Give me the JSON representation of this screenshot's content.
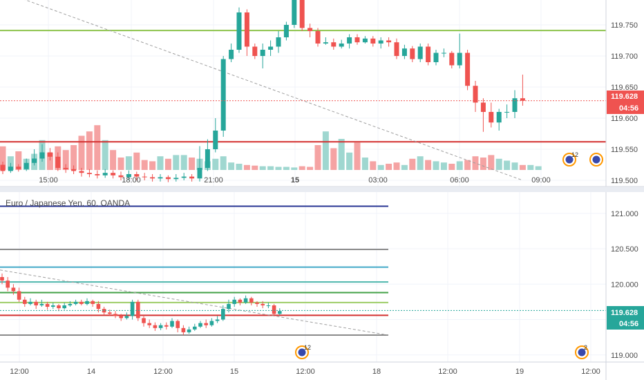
{
  "colors": {
    "up": "#26a69a",
    "down": "#ef5350",
    "vol_up": "#9fd7d0",
    "vol_down": "#f5a3a3",
    "grid": "#f0f3fa",
    "axis": "#4a4a4a",
    "support_green": "#8bc34a",
    "support_red": "#d32f2f",
    "price_line": "#ef5350",
    "trend_dash": "#9e9e9e"
  },
  "chart_data": [
    {
      "type": "candlestick",
      "x_tick_labels": [
        "15:00",
        "18:00",
        "21:00",
        "15",
        "03:00",
        "06:00",
        "09:00"
      ],
      "y_tick_labels": [
        "119.750",
        "119.700",
        "119.650",
        "119.600",
        "119.550",
        "119.500"
      ],
      "ylim": [
        119.49,
        119.79
      ],
      "current_price": "119.628",
      "countdown": "04:56",
      "horizontal_levels": [
        {
          "value": 119.741,
          "color": "#8bc34a"
        },
        {
          "value": 119.562,
          "color": "#d32f2f"
        }
      ],
      "trendline": {
        "from": [
          0,
          119.805
        ],
        "to": [
          66,
          119.5
        ]
      },
      "badges": [
        {
          "label": "12"
        },
        {
          "label": ""
        }
      ],
      "candles": [
        [
          119.525,
          119.515,
          119.53,
          119.51
        ],
        [
          119.515,
          119.522,
          119.528,
          119.512
        ],
        [
          119.522,
          119.518,
          119.526,
          119.514
        ],
        [
          119.518,
          119.528,
          119.535,
          119.515
        ],
        [
          119.528,
          119.535,
          119.55,
          119.524
        ],
        [
          119.535,
          119.545,
          119.558,
          119.53
        ],
        [
          119.545,
          119.538,
          119.552,
          119.532
        ],
        [
          119.538,
          119.52,
          119.545,
          119.515
        ],
        [
          119.52,
          119.518,
          119.526,
          119.512
        ],
        [
          119.518,
          119.515,
          119.524,
          119.51
        ],
        [
          119.515,
          119.512,
          119.52,
          119.506
        ],
        [
          119.512,
          119.51,
          119.518,
          119.505
        ],
        [
          119.51,
          119.508,
          119.516,
          119.503
        ],
        [
          119.508,
          119.512,
          119.518,
          119.504
        ],
        [
          119.512,
          119.508,
          119.516,
          119.503
        ],
        [
          119.508,
          119.505,
          119.514,
          119.5
        ],
        [
          119.505,
          119.51,
          119.516,
          119.5
        ],
        [
          119.51,
          119.506,
          119.514,
          119.5
        ],
        [
          119.506,
          119.505,
          119.512,
          119.5
        ],
        [
          119.505,
          119.503,
          119.51,
          119.498
        ],
        [
          119.503,
          119.505,
          119.51,
          119.498
        ],
        [
          119.505,
          119.502,
          119.508,
          119.497
        ],
        [
          119.502,
          119.504,
          119.51,
          119.498
        ],
        [
          119.504,
          119.506,
          119.512,
          119.5
        ],
        [
          119.506,
          119.503,
          119.51,
          119.498
        ],
        [
          119.503,
          119.52,
          119.555,
          119.498
        ],
        [
          119.52,
          119.55,
          119.566,
          119.515
        ],
        [
          119.55,
          119.58,
          119.6,
          119.545
        ],
        [
          119.58,
          119.695,
          119.7,
          119.57
        ],
        [
          119.695,
          119.71,
          119.72,
          119.69
        ],
        [
          119.71,
          119.77,
          119.778,
          119.705
        ],
        [
          119.77,
          119.715,
          119.775,
          119.7
        ],
        [
          119.715,
          119.7,
          119.72,
          119.695
        ],
        [
          119.7,
          119.71,
          119.72,
          119.68
        ],
        [
          119.71,
          119.715,
          119.725,
          119.7
        ],
        [
          119.715,
          119.73,
          119.74,
          119.705
        ],
        [
          119.73,
          119.75,
          119.755,
          119.725
        ],
        [
          119.75,
          119.79,
          119.8,
          119.745
        ],
        [
          119.79,
          119.745,
          119.8,
          119.74
        ],
        [
          119.745,
          119.74,
          119.752,
          119.73
        ],
        [
          119.74,
          119.72,
          119.745,
          119.715
        ],
        [
          119.72,
          119.722,
          119.73,
          119.718
        ],
        [
          119.722,
          119.715,
          119.728,
          119.71
        ],
        [
          119.715,
          119.72,
          119.726,
          119.712
        ],
        [
          119.72,
          119.73,
          119.735,
          119.712
        ],
        [
          119.73,
          119.722,
          119.735,
          119.718
        ],
        [
          119.722,
          119.728,
          119.732,
          119.72
        ],
        [
          119.728,
          119.72,
          119.732,
          119.715
        ],
        [
          119.72,
          119.725,
          119.73,
          119.712
        ],
        [
          119.725,
          119.722,
          119.73,
          119.715
        ],
        [
          119.722,
          119.7,
          119.728,
          119.695
        ],
        [
          119.7,
          119.712,
          119.718,
          119.695
        ],
        [
          119.712,
          119.695,
          119.716,
          119.69
        ],
        [
          119.695,
          119.715,
          119.72,
          119.69
        ],
        [
          119.715,
          119.69,
          119.72,
          119.685
        ],
        [
          119.69,
          119.705,
          119.71,
          119.685
        ],
        [
          119.705,
          119.705,
          119.712,
          119.698
        ],
        [
          119.705,
          119.685,
          119.708,
          119.68
        ],
        [
          119.685,
          119.705,
          119.736,
          119.68
        ],
        [
          119.705,
          119.652,
          119.71,
          119.645
        ],
        [
          119.652,
          119.625,
          119.66,
          119.61
        ],
        [
          119.625,
          119.61,
          119.632,
          119.578
        ],
        [
          119.61,
          119.593,
          119.625,
          119.585
        ],
        [
          119.593,
          119.61,
          119.615,
          119.58
        ],
        [
          119.61,
          119.61,
          119.622,
          119.6
        ],
        [
          119.61,
          119.632,
          119.645,
          119.6
        ],
        [
          119.632,
          119.628,
          119.67,
          119.62
        ]
      ],
      "volumes": [
        38,
        22,
        30,
        18,
        26,
        48,
        28,
        38,
        32,
        40,
        55,
        62,
        72,
        48,
        32,
        20,
        22,
        28,
        16,
        14,
        22,
        18,
        24,
        24,
        20,
        18,
        14,
        18,
        22,
        12,
        10,
        8,
        7,
        6,
        6,
        5,
        5,
        4,
        6,
        5,
        40,
        62,
        35,
        50,
        28,
        44,
        20,
        14,
        8,
        10,
        12,
        8,
        18,
        22,
        16,
        14,
        12,
        10,
        14,
        16,
        22,
        20,
        24,
        18,
        15,
        12,
        8,
        8,
        6
      ]
    },
    {
      "type": "candlestick",
      "legend": "Euro / Japanese Yen, 60, OANDA",
      "x_tick_labels": [
        "12:00",
        "14",
        "12:00",
        "15",
        "12:00",
        "18",
        "12:00",
        "19",
        "12:00"
      ],
      "y_tick_labels": [
        "121.000",
        "120.500",
        "120.000",
        "119.500",
        "119.000"
      ],
      "ylim": [
        118.9,
        121.3
      ],
      "current_price": "119.628",
      "countdown": "04:56",
      "horizontal_levels": [
        {
          "value": 121.1,
          "color": "#283593"
        },
        {
          "value": 120.49,
          "color": "#8a8a8a"
        },
        {
          "value": 120.24,
          "color": "#3fa7c6"
        },
        {
          "value": 120.03,
          "color": "#4db6ac"
        },
        {
          "value": 119.88,
          "color": "#43a047"
        },
        {
          "value": 119.74,
          "color": "#9ccc65"
        },
        {
          "value": 119.56,
          "color": "#d32f2f"
        },
        {
          "value": 119.28,
          "color": "#8a8a8a"
        }
      ],
      "trendline": {
        "from": [
          0,
          120.2
        ],
        "to": [
          65,
          119.28
        ]
      },
      "badges": [
        {
          "label": "12"
        },
        {
          "label": "2"
        }
      ],
      "candles": [
        [
          120.1,
          120.05,
          120.15,
          120.0
        ],
        [
          120.05,
          119.95,
          120.1,
          119.9
        ],
        [
          119.95,
          119.9,
          120.0,
          119.85
        ],
        [
          119.9,
          119.78,
          119.95,
          119.75
        ],
        [
          119.78,
          119.72,
          119.82,
          119.68
        ],
        [
          119.72,
          119.75,
          119.8,
          119.7
        ],
        [
          119.75,
          119.7,
          119.78,
          119.65
        ],
        [
          119.7,
          119.72,
          119.78,
          119.68
        ],
        [
          119.72,
          119.68,
          119.75,
          119.64
        ],
        [
          119.68,
          119.7,
          119.74,
          119.65
        ],
        [
          119.7,
          119.66,
          119.72,
          119.62
        ],
        [
          119.66,
          119.7,
          119.74,
          119.64
        ],
        [
          119.7,
          119.72,
          119.76,
          119.68
        ],
        [
          119.72,
          119.75,
          119.78,
          119.7
        ],
        [
          119.75,
          119.72,
          119.78,
          119.7
        ],
        [
          119.72,
          119.76,
          119.8,
          119.7
        ],
        [
          119.76,
          119.72,
          119.78,
          119.68
        ],
        [
          119.72,
          119.65,
          119.76,
          119.6
        ],
        [
          119.65,
          119.6,
          119.68,
          119.56
        ],
        [
          119.6,
          119.58,
          119.64,
          119.55
        ],
        [
          119.58,
          119.55,
          119.62,
          119.52
        ],
        [
          119.55,
          119.52,
          119.58,
          119.48
        ],
        [
          119.52,
          119.55,
          119.6,
          119.5
        ],
        [
          119.55,
          119.75,
          119.78,
          119.5
        ],
        [
          119.75,
          119.52,
          119.78,
          119.48
        ],
        [
          119.52,
          119.45,
          119.56,
          119.4
        ],
        [
          119.45,
          119.42,
          119.5,
          119.38
        ],
        [
          119.42,
          119.38,
          119.46,
          119.34
        ],
        [
          119.38,
          119.42,
          119.45,
          119.35
        ],
        [
          119.42,
          119.4,
          119.46,
          119.36
        ],
        [
          119.4,
          119.48,
          119.52,
          119.38
        ],
        [
          119.48,
          119.38,
          119.5,
          119.32
        ],
        [
          119.38,
          119.32,
          119.42,
          119.28
        ],
        [
          119.32,
          119.36,
          119.4,
          119.3
        ],
        [
          119.36,
          119.4,
          119.44,
          119.34
        ],
        [
          119.4,
          119.45,
          119.48,
          119.38
        ],
        [
          119.45,
          119.42,
          119.5,
          119.38
        ],
        [
          119.42,
          119.48,
          119.52,
          119.4
        ],
        [
          119.48,
          119.5,
          119.55,
          119.45
        ],
        [
          119.5,
          119.65,
          119.7,
          119.48
        ],
        [
          119.65,
          119.72,
          119.78,
          119.6
        ],
        [
          119.72,
          119.78,
          119.82,
          119.68
        ],
        [
          119.78,
          119.74,
          119.8,
          119.7
        ],
        [
          119.74,
          119.8,
          119.84,
          119.72
        ],
        [
          119.8,
          119.74,
          119.82,
          119.7
        ],
        [
          119.74,
          119.72,
          119.76,
          119.68
        ],
        [
          119.72,
          119.7,
          119.76,
          119.66
        ],
        [
          119.7,
          119.7,
          119.74,
          119.66
        ],
        [
          119.7,
          119.58,
          119.72,
          119.55
        ],
        [
          119.58,
          119.62,
          119.66,
          119.56
        ]
      ]
    }
  ]
}
